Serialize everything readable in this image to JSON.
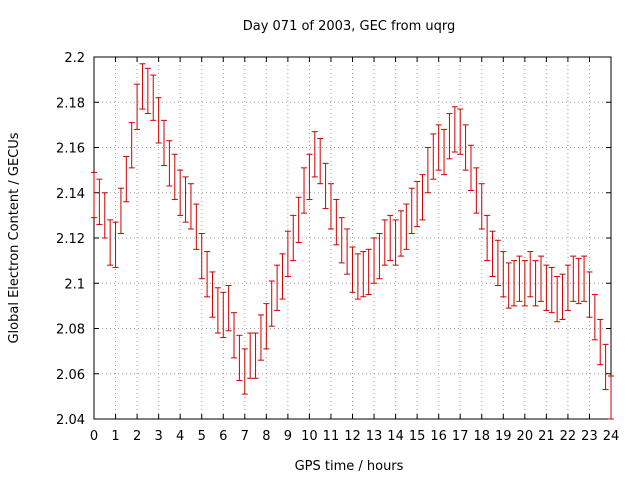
{
  "chart_data": {
    "type": "errorbar",
    "title": "Day 071 of 2003, GEC from uqrg",
    "xlabel": "GPS time / hours",
    "ylabel": "Global Electron Content / GECUs",
    "xlim": [
      0,
      24
    ],
    "ylim": [
      2.04,
      2.2
    ],
    "grid": true,
    "x_ticks": [
      "0",
      "1",
      "2",
      "3",
      "4",
      "5",
      "6",
      "7",
      "8",
      "9",
      "10",
      "11",
      "12",
      "13",
      "14",
      "15",
      "16",
      "17",
      "18",
      "19",
      "20",
      "21",
      "22",
      "23",
      "24"
    ],
    "y_ticks": [
      "2.04",
      "2.06",
      "2.08",
      "2.1",
      "2.12",
      "2.14",
      "2.16",
      "2.18",
      "2.2"
    ],
    "series": [
      {
        "color": "#cc0000",
        "error": 0.01,
        "x": [
          0,
          0.25,
          0.5,
          0.75,
          1,
          1.25,
          1.5,
          1.75,
          2,
          2.25,
          2.5,
          2.75,
          3,
          3.25,
          3.5,
          3.75,
          4,
          4.25,
          4.5,
          4.75,
          5,
          5.25,
          5.5,
          5.75,
          6,
          6.25,
          6.5,
          6.75,
          7,
          7.25,
          7.5,
          7.75,
          8,
          8.25,
          8.5,
          8.75,
          9,
          9.25,
          9.5,
          9.75,
          10,
          10.25,
          10.5,
          10.75,
          11,
          11.25,
          11.5,
          11.75,
          12,
          12.25,
          12.5,
          12.75,
          13,
          13.25,
          13.5,
          13.75,
          14,
          14.25,
          14.5,
          14.75,
          15,
          15.25,
          15.5,
          15.75,
          16,
          16.25,
          16.5,
          16.75,
          17,
          17.25,
          17.5,
          17.75,
          18,
          18.25,
          18.5,
          18.75,
          19,
          19.25,
          19.5,
          19.75,
          20,
          20.25,
          20.5,
          20.75,
          21,
          21.25,
          21.5,
          21.75,
          22,
          22.25,
          22.5,
          22.75,
          23,
          23.25,
          23.5,
          23.75,
          24
        ],
        "y": [
          2.139,
          2.136,
          2.13,
          2.118,
          2.117,
          2.132,
          2.146,
          2.161,
          2.178,
          2.187,
          2.185,
          2.182,
          2.172,
          2.162,
          2.153,
          2.147,
          2.14,
          2.137,
          2.134,
          2.125,
          2.112,
          2.104,
          2.095,
          2.088,
          2.086,
          2.089,
          2.077,
          2.067,
          2.061,
          2.068,
          2.068,
          2.076,
          2.081,
          2.091,
          2.098,
          2.103,
          2.113,
          2.12,
          2.128,
          2.141,
          2.147,
          2.157,
          2.154,
          2.143,
          2.134,
          2.127,
          2.119,
          2.114,
          2.106,
          2.103,
          2.104,
          2.105,
          2.11,
          2.112,
          2.118,
          2.12,
          2.118,
          2.122,
          2.125,
          2.132,
          2.135,
          2.138,
          2.15,
          2.156,
          2.16,
          2.158,
          2.165,
          2.168,
          2.167,
          2.16,
          2.151,
          2.141,
          2.134,
          2.12,
          2.113,
          2.109,
          2.104,
          2.099,
          2.1,
          2.102,
          2.1,
          2.104,
          2.1,
          2.102,
          2.098,
          2.097,
          2.093,
          2.094,
          2.098,
          2.102,
          2.101,
          2.102,
          2.095,
          2.085,
          2.074,
          2.063,
          2.049
        ]
      }
    ]
  }
}
